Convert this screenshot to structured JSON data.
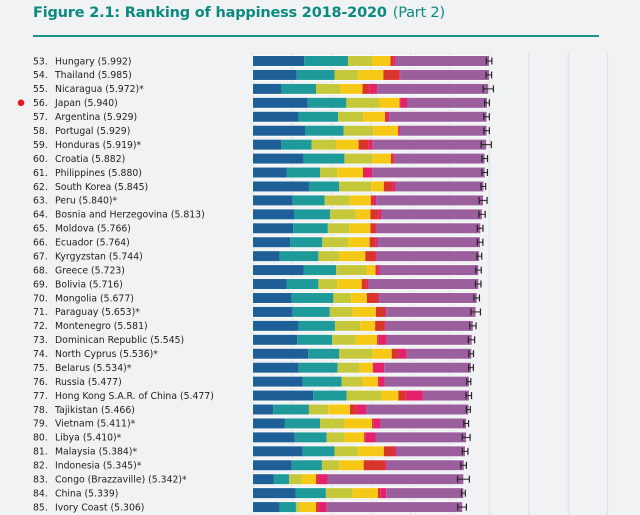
{
  "chart_data": {
    "type": "bar",
    "orientation": "horizontal",
    "stacked": true,
    "title": "Figure 2.1: Ranking of happiness 2018-2020",
    "subtitle": "(Part 2)",
    "xlim": [
      0,
      9
    ],
    "grid": true,
    "highlight": {
      "rank": 56,
      "marker_color": "#e8151b"
    },
    "segments": [
      {
        "color": "#1d5f96"
      },
      {
        "color": "#1f9a9a"
      },
      {
        "color": "#c6c83c"
      },
      {
        "color": "#f6c917"
      },
      {
        "color": "#d8352b"
      },
      {
        "color": "#e5206d"
      },
      {
        "color": "#9a5f9c"
      }
    ],
    "rows": [
      {
        "rank": "53.",
        "label": "Hungary (5.992)",
        "score": 5.992,
        "values": [
          1.3,
          1.11,
          0.61,
          0.47,
          0.07,
          0.06,
          2.37
        ],
        "ci": 0.07
      },
      {
        "rank": "54.",
        "label": "Thailand (5.985)",
        "score": 5.985,
        "values": [
          1.11,
          0.96,
          0.6,
          0.64,
          0.4,
          0.03,
          2.25
        ],
        "ci": 0.07
      },
      {
        "rank": "55.",
        "label": "Nicaragua (5.972)*",
        "score": 5.972,
        "values": [
          0.71,
          0.89,
          0.61,
          0.57,
          0.17,
          0.2,
          2.82
        ],
        "ci": 0.13
      },
      {
        "rank": "56.",
        "label": "Japan (5.940)",
        "score": 5.94,
        "values": [
          1.39,
          0.98,
          0.84,
          0.51,
          0.02,
          0.18,
          2.02
        ],
        "ci": 0.06
      },
      {
        "rank": "57.",
        "label": "Argentina (5.929)",
        "score": 5.929,
        "values": [
          1.16,
          1.0,
          0.64,
          0.55,
          0.04,
          0.07,
          2.47
        ],
        "ci": 0.07
      },
      {
        "rank": "58.",
        "label": "Portugal (5.929)",
        "score": 5.929,
        "values": [
          1.32,
          0.98,
          0.75,
          0.63,
          0.02,
          0.03,
          2.2
        ],
        "ci": 0.07
      },
      {
        "rank": "59.",
        "label": "Honduras (5.919)*",
        "score": 5.919,
        "values": [
          0.72,
          0.77,
          0.62,
          0.57,
          0.26,
          0.1,
          2.88
        ],
        "ci": 0.13
      },
      {
        "rank": "60.",
        "label": "Croatia (5.882)",
        "score": 5.882,
        "values": [
          1.28,
          1.04,
          0.71,
          0.47,
          0.07,
          0.03,
          2.28
        ],
        "ci": 0.07
      },
      {
        "rank": "61.",
        "label": "Philippines (5.880)",
        "score": 5.88,
        "values": [
          0.85,
          0.85,
          0.44,
          0.65,
          0.04,
          0.2,
          2.85
        ],
        "ci": 0.07
      },
      {
        "rank": "62.",
        "label": "South Korea (5.845)",
        "score": 5.845,
        "values": [
          1.42,
          0.77,
          0.81,
          0.32,
          0.21,
          0.09,
          2.23
        ],
        "ci": 0.06
      },
      {
        "rank": "63.",
        "label": "Peru (5.840)*",
        "score": 5.84,
        "values": [
          1.0,
          0.82,
          0.64,
          0.53,
          0.07,
          0.07,
          2.71
        ],
        "ci": 0.1
      },
      {
        "rank": "64.",
        "label": "Bosnia and Herzegovina (5.813)",
        "score": 5.813,
        "values": [
          1.04,
          0.92,
          0.64,
          0.38,
          0.21,
          0.07,
          2.55
        ],
        "ci": 0.08
      },
      {
        "rank": "65.",
        "label": "Moldova (5.766)",
        "score": 5.766,
        "values": [
          1.02,
          0.88,
          0.54,
          0.54,
          0.13,
          0.03,
          2.63
        ],
        "ci": 0.07
      },
      {
        "rank": "66.",
        "label": "Ecuador (5.764)",
        "score": 5.764,
        "values": [
          0.94,
          0.82,
          0.66,
          0.54,
          0.14,
          0.06,
          2.6
        ],
        "ci": 0.07
      },
      {
        "rank": "67.",
        "label": "Kyrgyzstan (5.744)",
        "score": 5.744,
        "values": [
          0.68,
          0.98,
          0.51,
          0.68,
          0.26,
          0.03,
          2.6
        ],
        "ci": 0.06
      },
      {
        "rank": "68.",
        "label": "Greece (5.723)",
        "score": 5.723,
        "values": [
          1.29,
          0.82,
          0.77,
          0.23,
          0.04,
          0.07,
          2.5
        ],
        "ci": 0.07
      },
      {
        "rank": "69.",
        "label": "Bolivia (5.716)",
        "score": 5.716,
        "values": [
          0.85,
          0.81,
          0.48,
          0.62,
          0.13,
          0.04,
          2.79
        ],
        "ci": 0.07
      },
      {
        "rank": "70.",
        "label": "Mongolia (5.677)",
        "score": 5.677,
        "values": [
          0.98,
          1.06,
          0.45,
          0.4,
          0.28,
          0.03,
          2.48
        ],
        "ci": 0.07
      },
      {
        "rank": "71.",
        "label": "Paraguay (5.653)*",
        "score": 5.653,
        "values": [
          1.0,
          0.95,
          0.57,
          0.6,
          0.23,
          0.03,
          2.27
        ],
        "ci": 0.12
      },
      {
        "rank": "72.",
        "label": "Montenegro (5.581)",
        "score": 5.581,
        "values": [
          1.16,
          0.92,
          0.64,
          0.38,
          0.24,
          0.03,
          2.21
        ],
        "ci": 0.08
      },
      {
        "rank": "73.",
        "label": "Dominican Republic (5.545)",
        "score": 5.545,
        "values": [
          1.12,
          0.89,
          0.6,
          0.54,
          0.04,
          0.2,
          2.16
        ],
        "ci": 0.08
      },
      {
        "rank": "74.",
        "label": "North Cyprus (5.536)*",
        "score": 5.536,
        "values": [
          1.4,
          0.79,
          0.84,
          0.49,
          0.17,
          0.21,
          1.64
        ],
        "ci": 0.06
      },
      {
        "rank": "75.",
        "label": "Belarus (5.534)*",
        "score": 5.534,
        "values": [
          1.16,
          0.99,
          0.55,
          0.34,
          0.03,
          0.26,
          2.2
        ],
        "ci": 0.06
      },
      {
        "rank": "76.",
        "label": "Russia (5.477)",
        "score": 5.477,
        "values": [
          1.26,
          0.99,
          0.53,
          0.39,
          0.03,
          0.14,
          2.14
        ],
        "ci": 0.05
      },
      {
        "rank": "77.",
        "label": "Hong Kong S.A.R. of China (5.477)",
        "score": 5.477,
        "values": [
          1.53,
          0.85,
          0.88,
          0.43,
          0.19,
          0.43,
          1.17
        ],
        "ci": 0.07
      },
      {
        "rank": "78.",
        "label": "Tajikistan (5.466)",
        "score": 5.466,
        "values": [
          0.51,
          0.91,
          0.49,
          0.55,
          0.17,
          0.24,
          2.6
        ],
        "ci": 0.05
      },
      {
        "rank": "79.",
        "label": "Vietnam (5.411)*",
        "score": 5.411,
        "values": [
          0.81,
          0.89,
          0.62,
          0.7,
          0.03,
          0.19,
          2.17
        ],
        "ci": 0.06
      },
      {
        "rank": "80.",
        "label": "Libya (5.410)*",
        "score": 5.41,
        "values": [
          1.06,
          0.81,
          0.45,
          0.5,
          0.03,
          0.26,
          2.3
        ],
        "ci": 0.1
      },
      {
        "rank": "81.",
        "label": "Malaysia (5.384)*",
        "score": 5.384,
        "values": [
          1.26,
          0.81,
          0.6,
          0.65,
          0.26,
          0.06,
          1.74
        ],
        "ci": 0.07
      },
      {
        "rank": "82.",
        "label": "Indonesia (5.345)*",
        "score": 5.345,
        "values": [
          0.98,
          0.77,
          0.44,
          0.62,
          0.55,
          0.03,
          1.96
        ],
        "ci": 0.07
      },
      {
        "rank": "83.",
        "label": "Congo (Brazzaville) (5.342)*",
        "score": 5.342,
        "values": [
          0.53,
          0.39,
          0.31,
          0.37,
          0.06,
          0.23,
          3.45
        ],
        "ci": 0.15
      },
      {
        "rank": "84.",
        "label": "China (5.339)",
        "score": 5.339,
        "values": [
          1.08,
          0.77,
          0.68,
          0.64,
          0.06,
          0.15,
          1.96
        ],
        "ci": 0.05
      },
      {
        "rank": "85.",
        "label": "Ivory Coast (5.306)",
        "score": 5.306,
        "values": [
          0.68,
          0.41,
          0.1,
          0.41,
          0.06,
          0.21,
          3.44
        ],
        "ci": 0.11
      }
    ]
  }
}
